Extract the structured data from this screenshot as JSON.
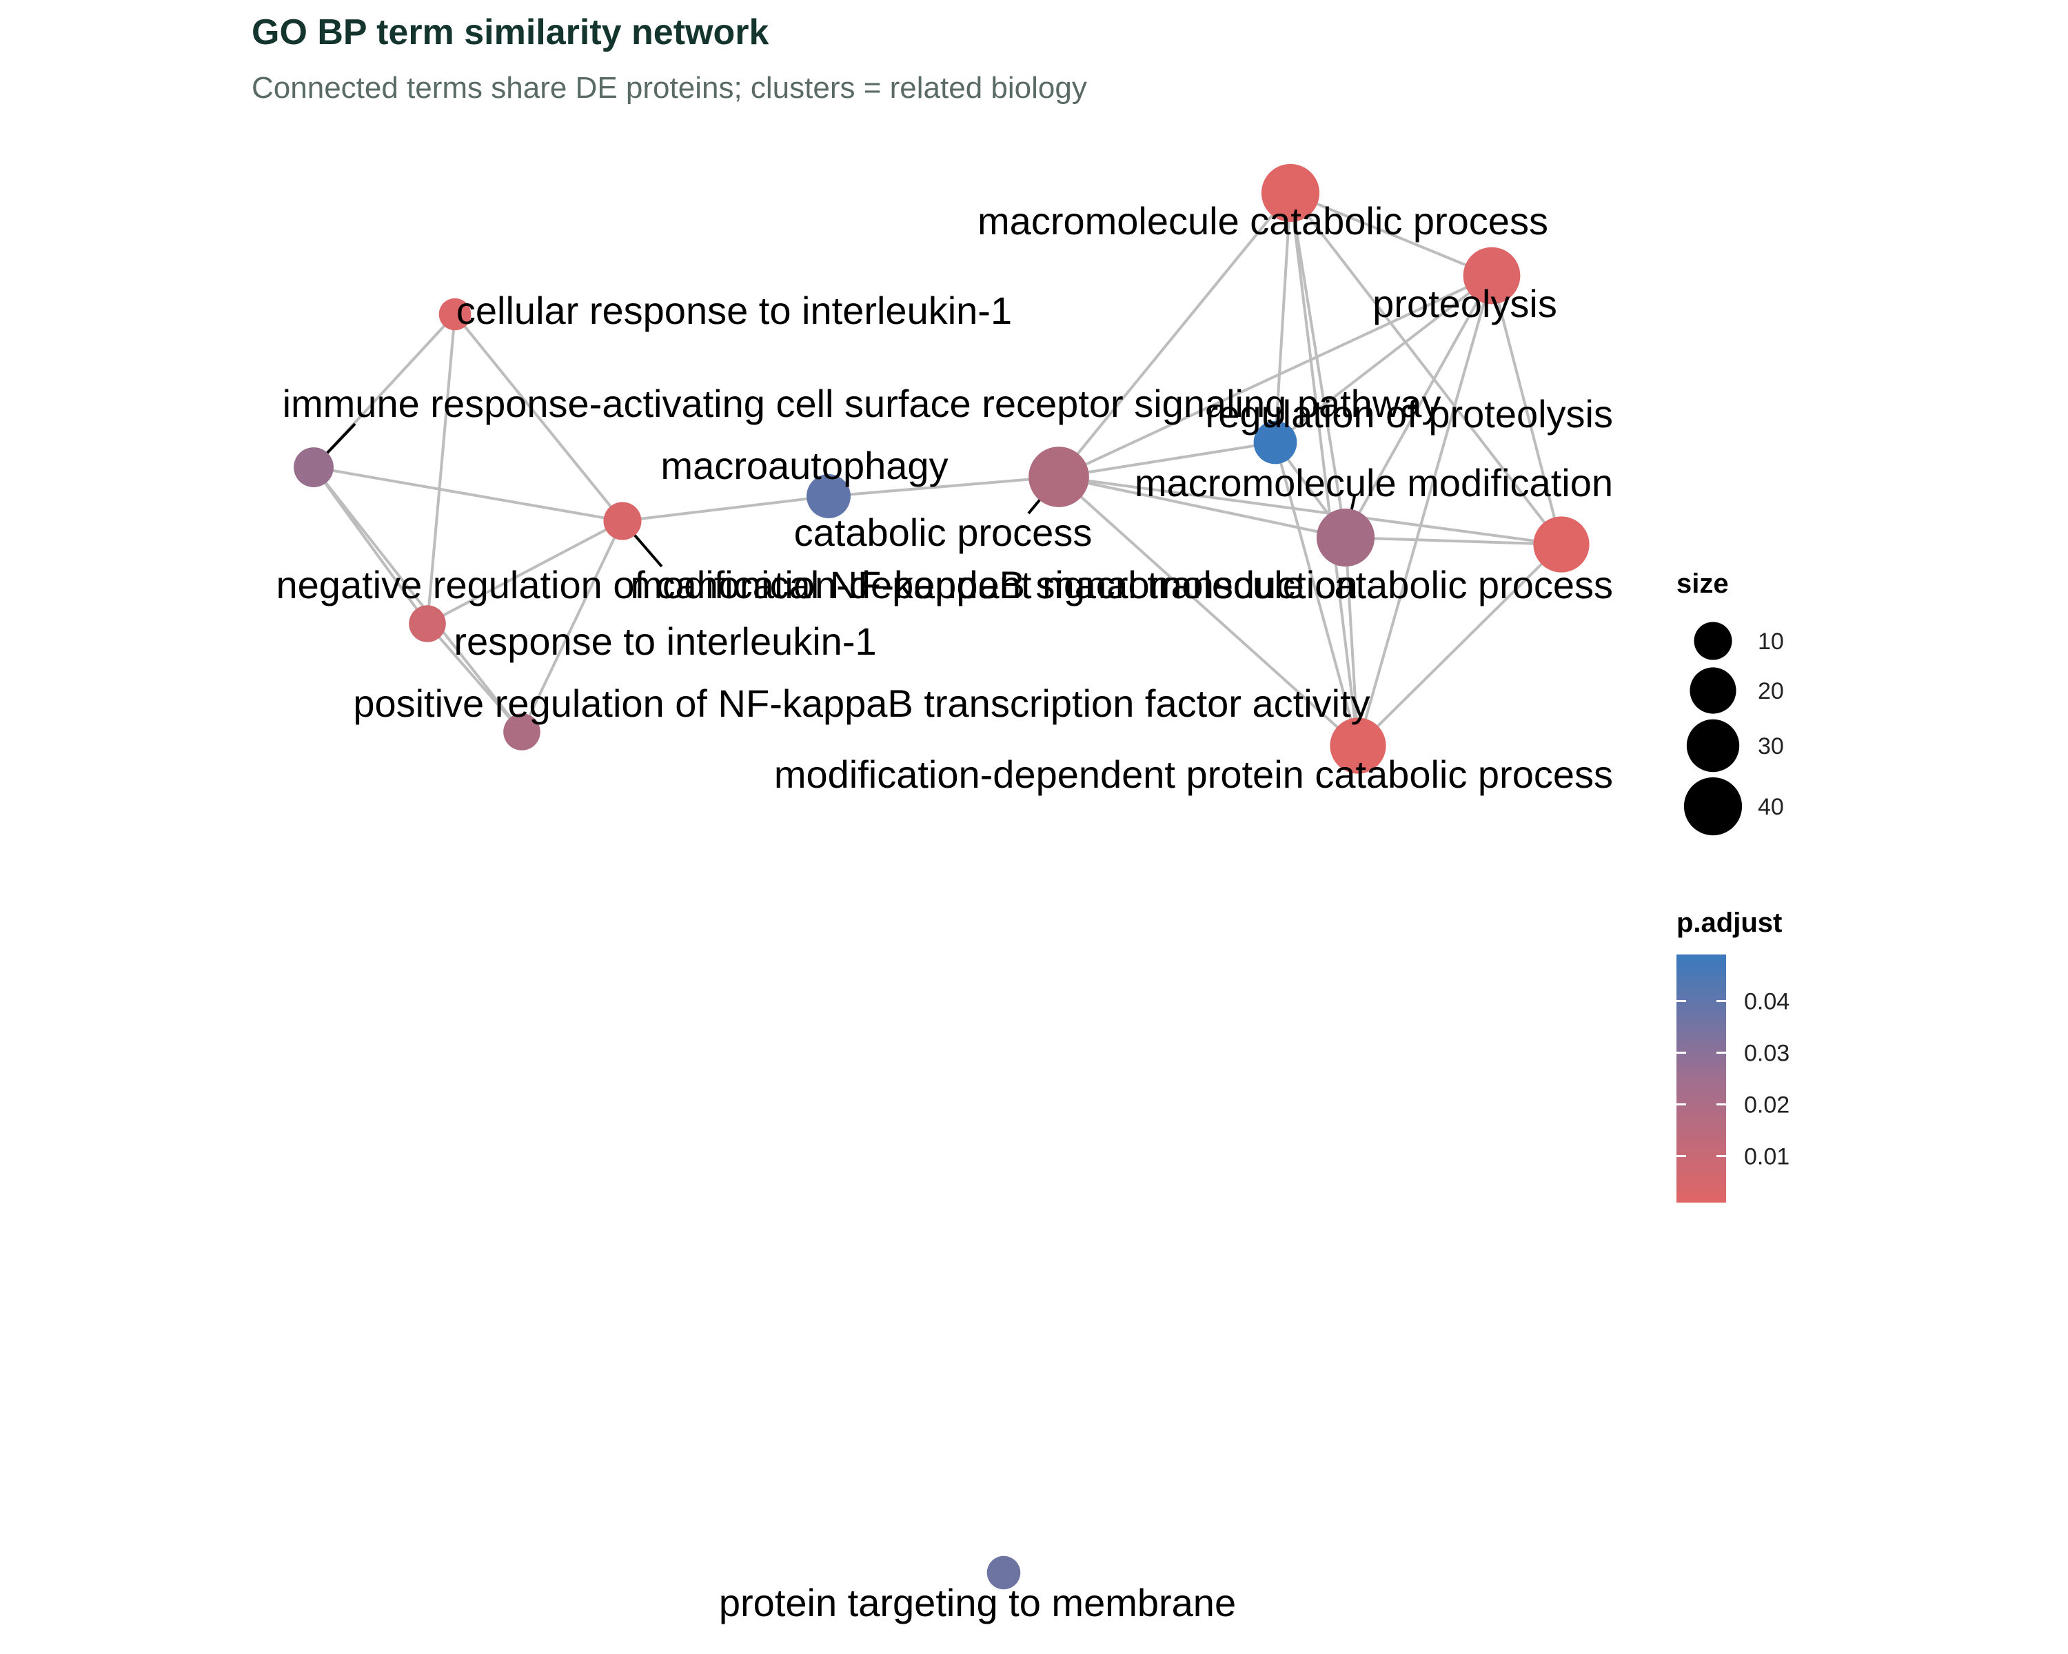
{
  "title": "GO BP term similarity network",
  "subtitle": "Connected terms share DE proteins; clusters = related biology",
  "colors": {
    "title": "#14352e",
    "subtitle": "#5a6b66",
    "edge": "#bdbdbd",
    "label": "#000000",
    "low_p": "#e06666",
    "high_p": "#3a7abd"
  },
  "nodes": [
    {
      "id": "mcp",
      "term": "macromolecule catabolic process",
      "size": 40,
      "p_adjust": 0.001
    },
    {
      "id": "prot",
      "term": "proteolysis",
      "size": 38,
      "p_adjust": 0.002
    },
    {
      "id": "crIL1",
      "term": "cellular response to interleukin-1",
      "size": 5,
      "p_adjust": 0.002
    },
    {
      "id": "irac",
      "term": "immune response-activating cell surface receptor signaling pathway",
      "size": 12,
      "p_adjust": 0.022
    },
    {
      "id": "regprot",
      "term": "regulation of proteolysis",
      "size": 16,
      "p_adjust": 0.049
    },
    {
      "id": "macroaut",
      "term": "macroautophagy",
      "size": 17,
      "p_adjust": 0.038
    },
    {
      "id": "catab",
      "term": "catabolic process",
      "size": 45,
      "p_adjust": 0.015
    },
    {
      "id": "mmod",
      "term": "macromolecule modification",
      "size": 40,
      "p_adjust": 0.018
    },
    {
      "id": "nrNFkB",
      "term": "negative regulation of canonical NF-kappaB signal transduction",
      "size": 10,
      "p_adjust": 0.003
    },
    {
      "id": "mdmcp",
      "term": "modification-dependent macromolecule catabolic process",
      "size": 36,
      "p_adjust": 0.001
    },
    {
      "id": "rIL1",
      "term": "response to interleukin-1",
      "size": 9,
      "p_adjust": 0.006
    },
    {
      "id": "prNFkB",
      "term": "positive regulation of NF-kappaB transcription factor activity",
      "size": 9,
      "p_adjust": 0.016
    },
    {
      "id": "mdpcp",
      "term": "modification-dependent protein catabolic process",
      "size": 36,
      "p_adjust": 0.001
    },
    {
      "id": "ptm",
      "term": "protein targeting to membrane",
      "size": 6,
      "p_adjust": 0.034
    }
  ],
  "edges": [
    [
      "crIL1",
      "irac"
    ],
    [
      "crIL1",
      "nrNFkB"
    ],
    [
      "crIL1",
      "rIL1"
    ],
    [
      "irac",
      "nrNFkB"
    ],
    [
      "irac",
      "rIL1"
    ],
    [
      "irac",
      "prNFkB"
    ],
    [
      "nrNFkB",
      "rIL1"
    ],
    [
      "nrNFkB",
      "prNFkB"
    ],
    [
      "nrNFkB",
      "macroaut"
    ],
    [
      "rIL1",
      "prNFkB"
    ],
    [
      "macroaut",
      "catab"
    ],
    [
      "catab",
      "mcp"
    ],
    [
      "catab",
      "prot"
    ],
    [
      "catab",
      "regprot"
    ],
    [
      "catab",
      "mmod"
    ],
    [
      "catab",
      "mdmcp"
    ],
    [
      "catab",
      "mdpcp"
    ],
    [
      "mcp",
      "prot"
    ],
    [
      "mcp",
      "regprot"
    ],
    [
      "mcp",
      "mmod"
    ],
    [
      "mcp",
      "mdmcp"
    ],
    [
      "mcp",
      "mdpcp"
    ],
    [
      "prot",
      "regprot"
    ],
    [
      "prot",
      "mmod"
    ],
    [
      "prot",
      "mdmcp"
    ],
    [
      "prot",
      "mdpcp"
    ],
    [
      "regprot",
      "mmod"
    ],
    [
      "regprot",
      "mdpcp"
    ],
    [
      "mmod",
      "mdmcp"
    ],
    [
      "mmod",
      "mdpcp"
    ],
    [
      "mdmcp",
      "mdpcp"
    ]
  ],
  "legend": {
    "size_title": "size",
    "size_values": [
      10,
      20,
      30,
      40
    ],
    "size_labels": [
      "10",
      "20",
      "30",
      "40"
    ],
    "color_title": "p.adjust",
    "color_ticks": [
      0.04,
      0.03,
      0.02,
      0.01
    ],
    "color_labels": [
      "0.04",
      "0.03",
      "0.02",
      "0.01"
    ]
  }
}
